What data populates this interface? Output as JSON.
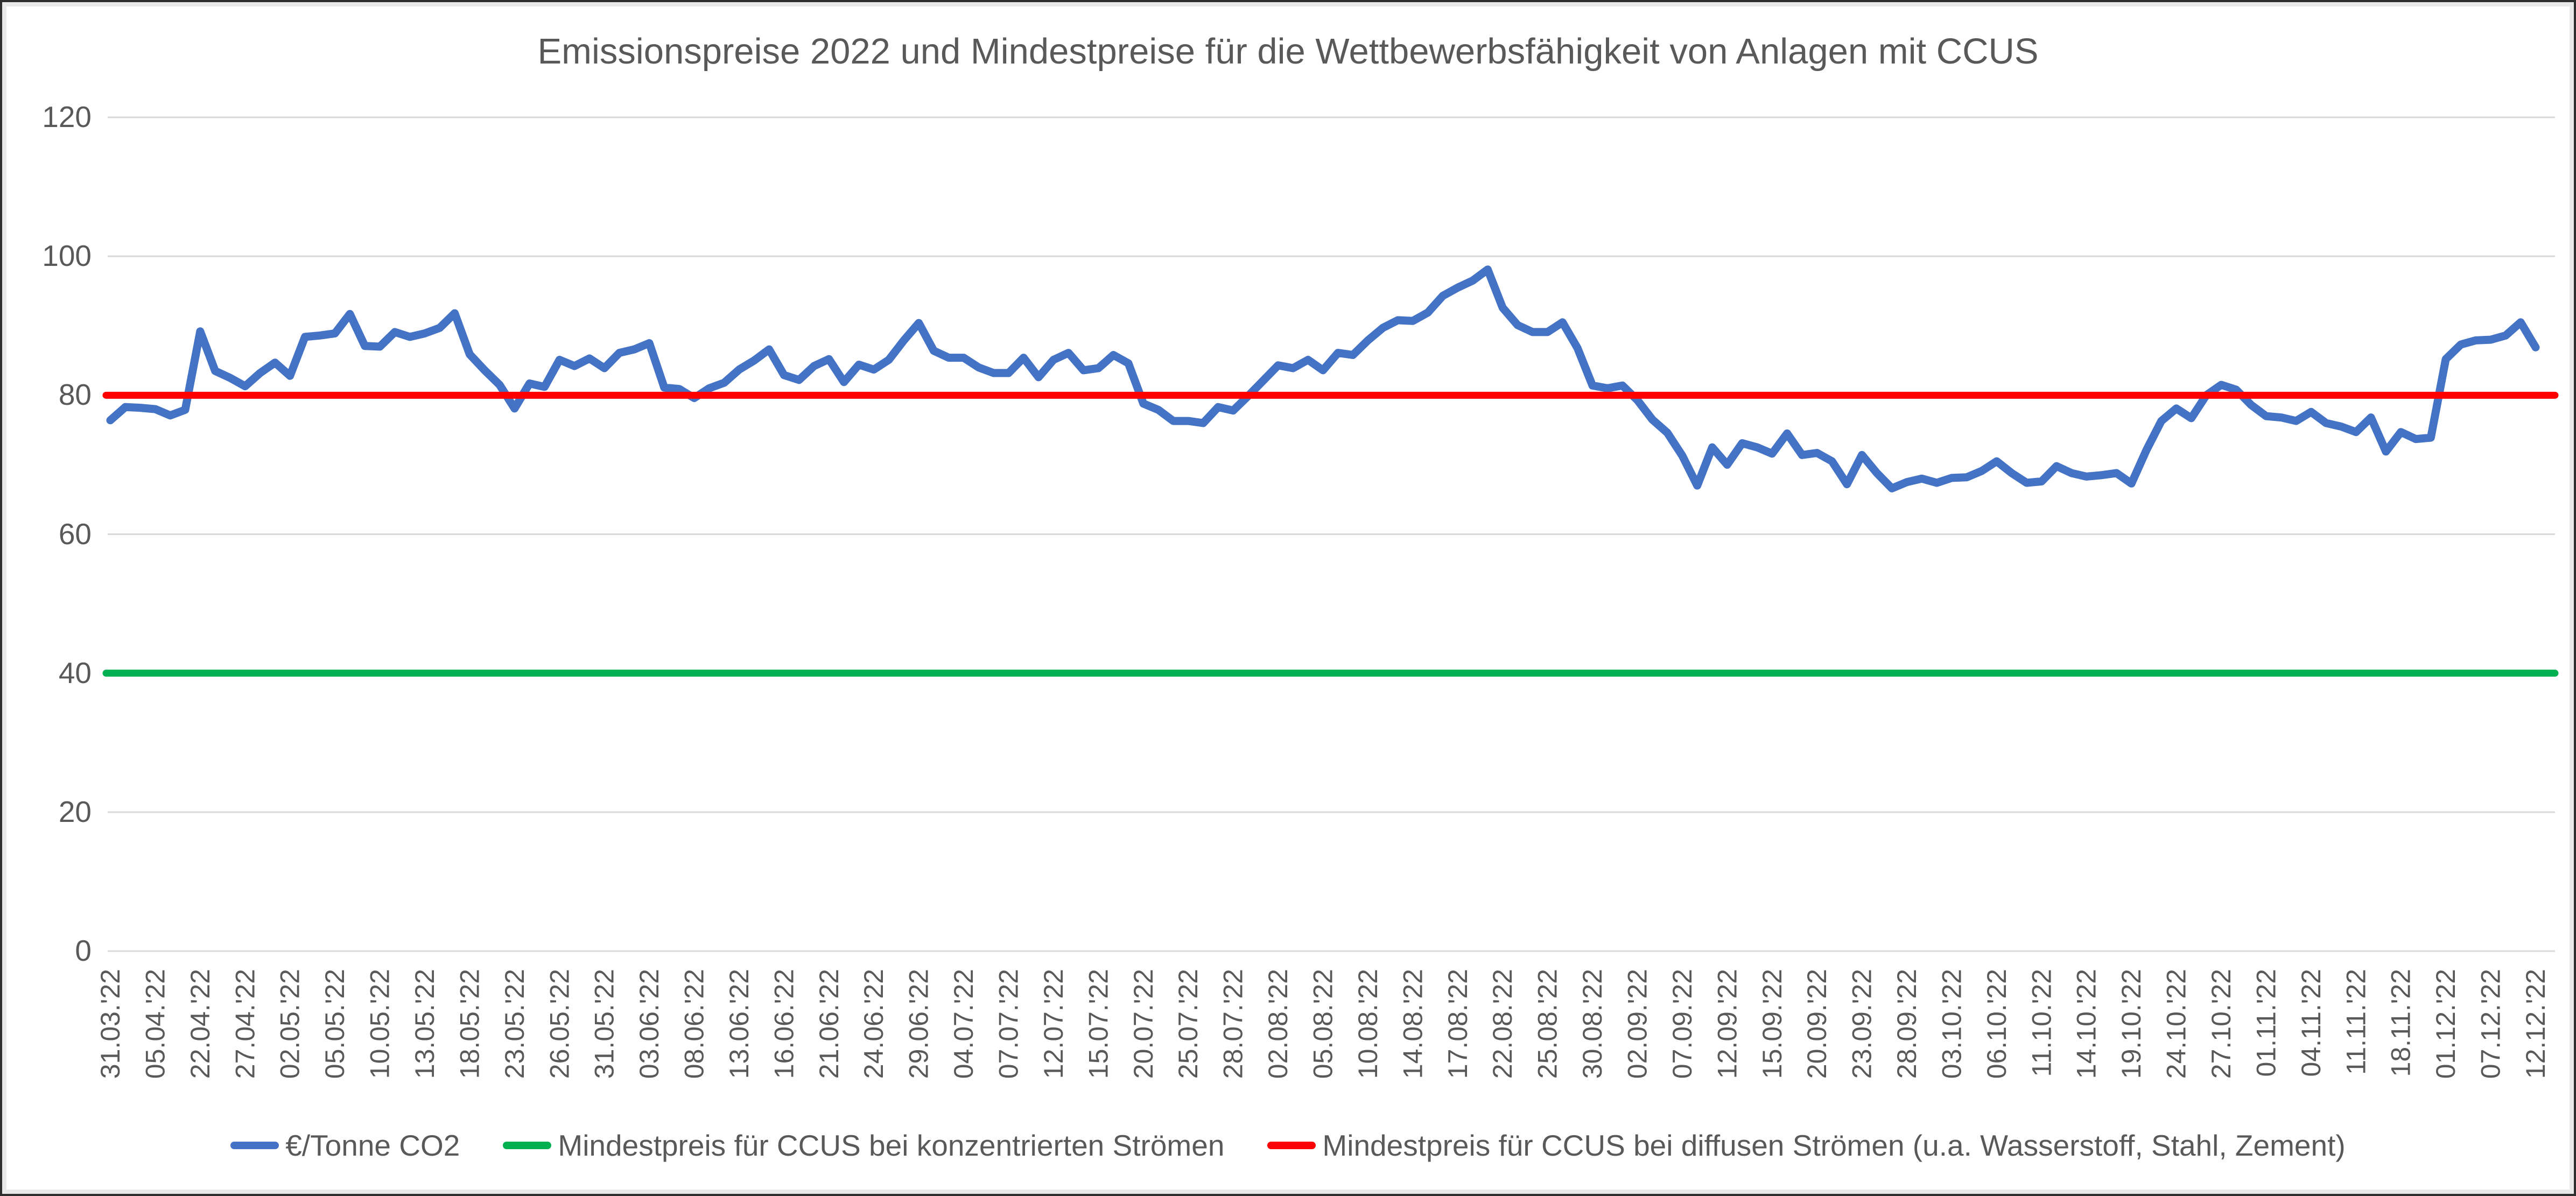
{
  "chart_data": {
    "type": "line",
    "title": "Emissionspreise 2022 und Mindestpreise für die Wettbewerbsfähigkeit von Anlagen mit CCUS",
    "xlabel": "",
    "ylabel": "",
    "ylim": [
      0,
      120
    ],
    "yticks": [
      0,
      20,
      40,
      60,
      80,
      100,
      120
    ],
    "grid": true,
    "gridline_color": "#d9d9d9",
    "text_color": "#595959",
    "legend_position": "bottom",
    "labels_every_n_points": 3,
    "categories": [
      "31.03.'22",
      "05.04.'22",
      "22.04.'22",
      "27.04.'22",
      "02.05.'22",
      "05.05.'22",
      "10.05.'22",
      "13.05.'22",
      "18.05.'22",
      "23.05.'22",
      "26.05.'22",
      "31.05.'22",
      "03.06.'22",
      "08.06.'22",
      "13.06.'22",
      "16.06.'22",
      "21.06.'22",
      "24.06.'22",
      "29.06.'22",
      "04.07.'22",
      "07.07.'22",
      "12.07.'22",
      "15.07.'22",
      "20.07.'22",
      "25.07.'22",
      "28.07.'22",
      "02.08.'22",
      "05.08.'22",
      "10.08.'22",
      "14.08.'22",
      "17.08.'22",
      "22.08.'22",
      "25.08.'22",
      "30.08.'22",
      "02.09.'22",
      "07.09.'22",
      "12.09.'22",
      "15.09.'22",
      "20.09.'22",
      "23.09.'22",
      "28.09.'22",
      "03.10.'22",
      "06.10.'22",
      "11.10.'22",
      "14.10.'22",
      "19.10.'22",
      "24.10.'22",
      "27.10.'22",
      "01.11.'22",
      "04.11.'22",
      "11.11.'22",
      "18.11.'22",
      "01.12.'22",
      "07.12.'22",
      "12.12.'22"
    ],
    "series": [
      {
        "name": "€/Tonne CO2",
        "kind": "line",
        "color": "#4472C4",
        "values": [
          76.4,
          78.3,
          78.2,
          78.0,
          77.1,
          77.9,
          89.2,
          83.5,
          82.5,
          81.3,
          83.2,
          84.7,
          82.8,
          88.4,
          88.6,
          88.9,
          91.7,
          87.1,
          87.0,
          89.1,
          88.4,
          88.9,
          89.7,
          91.8,
          85.9,
          83.6,
          81.5,
          78.1,
          81.7,
          81.2,
          85.1,
          84.2,
          85.3,
          83.9,
          86.1,
          86.6,
          87.5,
          81.1,
          80.9,
          79.6,
          81.0,
          81.8,
          83.7,
          85.0,
          86.6,
          82.9,
          82.2,
          84.2,
          85.2,
          81.9,
          84.4,
          83.7,
          85.1,
          87.9,
          90.4,
          86.4,
          85.4,
          85.4,
          84.0,
          83.2,
          83.2,
          85.4,
          82.6,
          85.1,
          86.1,
          83.6,
          83.9,
          85.8,
          84.6,
          78.8,
          77.9,
          76.3,
          76.3,
          76.0,
          78.3,
          77.8,
          79.9,
          82.1,
          84.3,
          83.9,
          85.1,
          83.6,
          86.1,
          85.8,
          87.9,
          89.7,
          90.8,
          90.7,
          91.9,
          94.3,
          95.5,
          96.5,
          98.1,
          92.6,
          90.1,
          89.1,
          89.1,
          90.5,
          86.8,
          81.4,
          81.0,
          81.4,
          79.3,
          76.5,
          74.6,
          71.3,
          67.0,
          72.5,
          70.0,
          73.1,
          72.5,
          71.6,
          74.5,
          71.4,
          71.7,
          70.5,
          67.2,
          71.4,
          68.8,
          66.6,
          67.5,
          68.0,
          67.4,
          68.1,
          68.2,
          69.1,
          70.5,
          68.8,
          67.4,
          67.6,
          69.8,
          68.8,
          68.3,
          68.5,
          68.8,
          67.3,
          72.1,
          76.3,
          78.1,
          76.7,
          80.0,
          81.5,
          80.8,
          78.6,
          77.0,
          76.8,
          76.3,
          77.6,
          76.0,
          75.5,
          74.7,
          76.8,
          71.9,
          74.7,
          73.7,
          73.9,
          85.2,
          87.3,
          87.9,
          88.0,
          88.6,
          90.5,
          86.9
        ]
      },
      {
        "name": "Mindestpreis für CCUS bei konzentrierten Strömen",
        "kind": "hline",
        "color": "#00B050",
        "value": 40
      },
      {
        "name": "Mindestpreis für CCUS bei diffusen Strömen (u.a. Wasserstoff, Stahl, Zement)",
        "kind": "hline",
        "color": "#FF0000",
        "value": 80
      }
    ]
  },
  "legend": {
    "items": [
      {
        "label": "€/Tonne CO2",
        "color": "#4472C4"
      },
      {
        "label": "Mindestpreis für CCUS bei konzentrierten Strömen",
        "color": "#00B050"
      },
      {
        "label": "Mindestpreis für CCUS bei diffusen Strömen (u.a. Wasserstoff, Stahl, Zement)",
        "color": "#FF0000"
      }
    ]
  }
}
